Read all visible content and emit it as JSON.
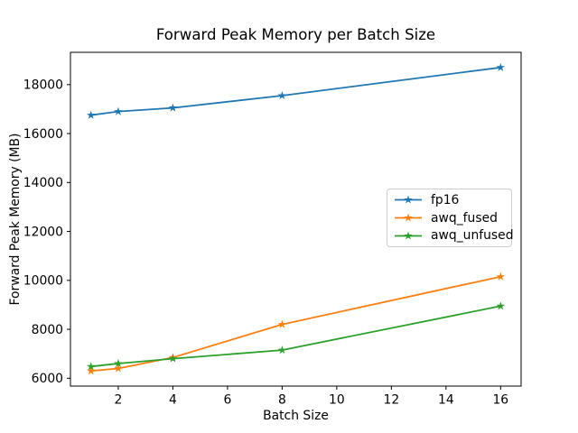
{
  "chart_data": {
    "type": "line",
    "title": "Forward Peak Memory per Batch Size",
    "xlabel": "Batch Size",
    "ylabel": "Forward Peak Memory (MB)",
    "x": [
      1,
      2,
      4,
      8,
      16
    ],
    "series": [
      {
        "name": "fp16",
        "color": "#1f77b4",
        "values": [
          16750,
          16900,
          17050,
          17550,
          18700
        ]
      },
      {
        "name": "awq_fused",
        "color": "#ff7f0e",
        "values": [
          6300,
          6400,
          6850,
          8200,
          10150
        ]
      },
      {
        "name": "awq_unfused",
        "color": "#2ca02c",
        "values": [
          6480,
          6600,
          6800,
          7150,
          8950
        ]
      }
    ],
    "marker": "star",
    "xlim": [
      0.25,
      16.75
    ],
    "ylim": [
      5680,
      19320
    ],
    "xticks": [
      2,
      4,
      6,
      8,
      10,
      12,
      14,
      16
    ],
    "yticks": [
      6000,
      8000,
      10000,
      12000,
      14000,
      16000,
      18000
    ],
    "grid": false,
    "legend_position": "center-right",
    "axis_color": "#000000",
    "background_color": "#ffffff"
  }
}
